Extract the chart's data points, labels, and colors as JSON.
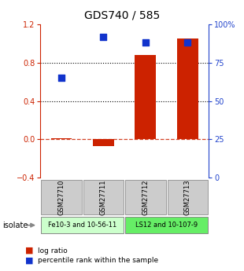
{
  "title": "GDS740 / 585",
  "samples": [
    "GSM27710",
    "GSM27711",
    "GSM27712",
    "GSM27713"
  ],
  "log_ratio": [
    0.01,
    -0.07,
    0.88,
    1.05
  ],
  "percentile": [
    65,
    92,
    88,
    88
  ],
  "left_ylim": [
    -0.4,
    1.2
  ],
  "right_ylim": [
    0,
    100
  ],
  "left_yticks": [
    -0.4,
    0.0,
    0.4,
    0.8,
    1.2
  ],
  "right_yticks": [
    0,
    25,
    50,
    75,
    100
  ],
  "right_yticklabels": [
    "0",
    "25",
    "50",
    "75",
    "100%"
  ],
  "hline_dotted": [
    0.4,
    0.8
  ],
  "hline_dashed": 0.0,
  "bar_color": "#cc2200",
  "dot_color": "#1133cc",
  "bar_width": 0.5,
  "dot_size": 40,
  "groups": [
    {
      "label": "Fe10-3 and 10-56-11",
      "samples": [
        0,
        1
      ],
      "color": "#ccffcc"
    },
    {
      "label": "LS12 and 10-107-9",
      "samples": [
        2,
        3
      ],
      "color": "#66ee66"
    }
  ],
  "isolate_label": "isolate",
  "legend_log_ratio": "log ratio",
  "legend_percentile": "percentile rank within the sample",
  "bg_color": "#ffffff",
  "plot_bg": "#ffffff",
  "left_axis_color": "#cc2200",
  "right_axis_color": "#2244cc",
  "sample_box_color": "#cccccc",
  "sample_box_edge": "#999999"
}
